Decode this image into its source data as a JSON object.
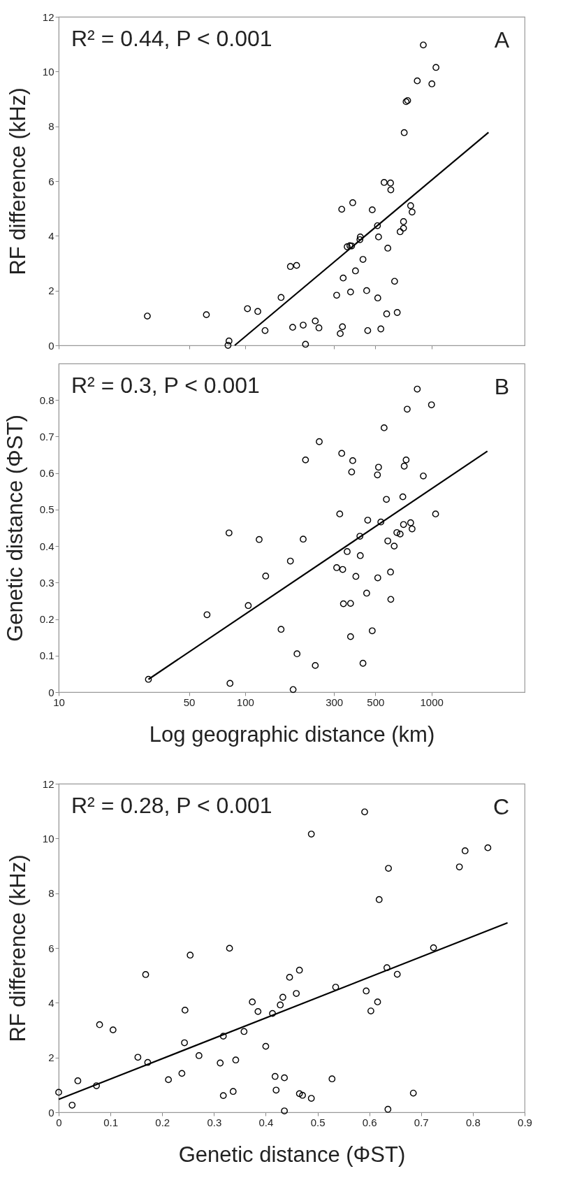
{
  "chart_data": [
    {
      "type": "scatter",
      "ylabel": "RF difference (kHz)",
      "annotations": [
        "R² = 0.44, P < 0.001",
        "A"
      ],
      "log": "x",
      "tick_labels": "y",
      "grid": false,
      "xlim": [
        10,
        3160
      ],
      "xticks": [
        10,
        50,
        100,
        300,
        500,
        1000
      ],
      "ylim": [
        0,
        12
      ],
      "yticks": [
        0,
        2,
        4,
        6,
        8,
        10,
        12
      ],
      "series": [
        {
          "color": "#000000",
          "marker": "circle",
          "x": [
            29.9,
            62,
            82,
            81,
            103,
            117,
            128,
            156,
            175,
            189,
            180,
            205,
            211,
            238,
            249,
            310,
            330,
            336,
            324,
            333,
            353,
            365,
            373,
            368,
            378,
            391,
            413,
            415,
            429,
            449,
            455,
            481,
            513,
            520,
            515,
            535,
            557,
            583,
            575,
            603,
            605,
            634,
            655,
            679,
            708,
            708,
            714,
            731,
            745,
            773,
            787,
            839,
            904,
            1005,
            1057
          ],
          "values": [
            1.07,
            1.12,
            0.16,
            0.0,
            1.34,
            1.24,
            0.54,
            1.75,
            2.88,
            2.92,
            0.66,
            0.74,
            0.04,
            0.89,
            0.64,
            1.83,
            4.97,
            2.46,
            0.43,
            0.68,
            3.6,
            3.64,
            3.63,
            1.95,
            5.21,
            2.72,
            3.86,
            3.96,
            3.14,
            2.0,
            0.54,
            4.95,
            4.37,
            3.96,
            1.73,
            0.6,
            5.95,
            3.55,
            1.15,
            5.93,
            5.68,
            2.34,
            1.2,
            4.15,
            4.28,
            4.52,
            7.77,
            8.9,
            8.94,
            5.1,
            4.87,
            9.66,
            10.97,
            9.55,
            10.15
          ]
        },
        {
          "type": "line",
          "marker": "none",
          "color": "#000000",
          "x": [
            88,
            2023
          ],
          "values": [
            0,
            7.78
          ]
        }
      ]
    },
    {
      "type": "scatter",
      "xlabel": "Log geographic distance (km)",
      "ylabel": "Genetic distance (ΦST)",
      "annotations": [
        "R² = 0.3, P < 0.001",
        "B"
      ],
      "log": "x",
      "grid": false,
      "xlim": [
        10,
        3160
      ],
      "xticks": [
        10,
        50,
        100,
        300,
        500,
        1000
      ],
      "ylim": [
        0,
        0.9
      ],
      "yticks": [
        0,
        0.1,
        0.2,
        0.3,
        0.4,
        0.5,
        0.6,
        0.7,
        0.8
      ],
      "series": [
        {
          "color": "#000000",
          "marker": "circle",
          "x": [
            30.3,
            62.5,
            82,
            83,
            104,
            119,
            129,
            156,
            175,
            181,
            190,
            205,
            211,
            238,
            250,
            310,
            322,
            330,
            334,
            337,
            353,
            368,
            368,
            373,
            378,
            393,
            413,
            415,
            429,
            449,
            455,
            481,
            513,
            515,
            520,
            535,
            557,
            573,
            583,
            603,
            605,
            631,
            652,
            679,
            702,
            708,
            714,
            731,
            741,
            773,
            787,
            839,
            904,
            1000,
            1052
          ],
          "values": [
            0.035,
            0.212,
            0.436,
            0.024,
            0.237,
            0.418,
            0.318,
            0.172,
            0.359,
            0.007,
            0.105,
            0.419,
            0.636,
            0.073,
            0.686,
            0.341,
            0.488,
            0.654,
            0.336,
            0.242,
            0.385,
            0.243,
            0.152,
            0.603,
            0.634,
            0.317,
            0.427,
            0.374,
            0.079,
            0.271,
            0.471,
            0.168,
            0.595,
            0.313,
            0.616,
            0.466,
            0.724,
            0.528,
            0.414,
            0.329,
            0.254,
            0.4,
            0.437,
            0.433,
            0.535,
            0.459,
            0.619,
            0.636,
            0.775,
            0.464,
            0.447,
            0.83,
            0.592,
            0.787,
            0.488
          ]
        },
        {
          "type": "line",
          "marker": "none",
          "color": "#000000",
          "x": [
            30.3,
            1995
          ],
          "values": [
            0.035,
            0.66
          ]
        }
      ]
    },
    {
      "type": "scatter",
      "xlabel": "Genetic distance (ΦST)",
      "ylabel": "RF difference (kHz)",
      "annotations": [
        "R² = 0.28, P < 0.001",
        "C"
      ],
      "grid": false,
      "xlim": [
        0,
        0.9
      ],
      "xticks": [
        0,
        0.1,
        0.2,
        0.3,
        0.4,
        0.5,
        0.6,
        0.7,
        0.8,
        0.9
      ],
      "ylim": [
        0,
        12
      ],
      "yticks": [
        0,
        2,
        4,
        6,
        8,
        10,
        12
      ],
      "series": [
        {
          "color": "#000000",
          "marker": "circle",
          "x": [
            0.0,
            0.026,
            0.037,
            0.073,
            0.079,
            0.105,
            0.153,
            0.168,
            0.172,
            0.212,
            0.238,
            0.243,
            0.244,
            0.254,
            0.271,
            0.312,
            0.318,
            0.318,
            0.33,
            0.337,
            0.342,
            0.358,
            0.374,
            0.385,
            0.4,
            0.413,
            0.418,
            0.42,
            0.428,
            0.433,
            0.436,
            0.436,
            0.446,
            0.459,
            0.465,
            0.465,
            0.471,
            0.488,
            0.528,
            0.535,
            0.594,
            0.603,
            0.616,
            0.634,
            0.636,
            0.654,
            0.685,
            0.724,
            0.488,
            0.591,
            0.619,
            0.637,
            0.774,
            0.785,
            0.829
          ],
          "values": [
            0.73,
            0.26,
            1.15,
            0.97,
            3.2,
            3.01,
            2.01,
            5.03,
            1.82,
            1.19,
            1.42,
            2.54,
            3.73,
            5.74,
            2.07,
            1.8,
            2.78,
            0.61,
            5.99,
            0.76,
            1.91,
            2.95,
            4.03,
            3.68,
            2.41,
            3.61,
            1.31,
            0.81,
            3.92,
            4.2,
            1.26,
            0.05,
            4.93,
            4.34,
            5.19,
            0.68,
            0.62,
            0.51,
            1.22,
            4.57,
            4.43,
            3.7,
            4.03,
            5.28,
            0.11,
            5.04,
            0.7,
            6.01,
            10.16,
            10.97,
            7.77,
            8.91,
            8.96,
            9.55,
            9.66
          ]
        },
        {
          "type": "line",
          "marker": "none",
          "color": "#000000",
          "x": [
            0,
            0.867
          ],
          "values": [
            0.47,
            6.92
          ]
        }
      ]
    }
  ]
}
